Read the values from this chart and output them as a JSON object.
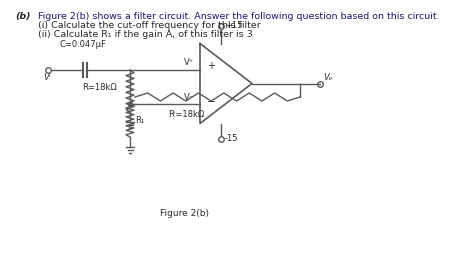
{
  "title_b": "(b)",
  "title_main": "Figure 2(b) shows a filter circuit. Answer the following question based on this circuit.",
  "question_i": "(i) Calculate the cut-off frequency for this filter",
  "question_ii": "(ii) Calculate R₁ if the gain A, of this filter is 3",
  "fig_label": "Figure 2(b)",
  "cap_label": "C=0.047μF",
  "r_label": "R=18kΩ",
  "rf_label": "Rⁱ=18kΩ",
  "r1_label": "R₁",
  "v_plus_label": "+15",
  "v_minus_label": "-15",
  "vi_label": "Vᴵ",
  "vo_label": "Vₒ",
  "vplus_node": "V⁺",
  "vminus_node": "V⁻",
  "bg_color": "#ffffff",
  "text_color": "#2a2a2a",
  "line_color": "#5a5a5a",
  "header_color": "#1a1a6e"
}
